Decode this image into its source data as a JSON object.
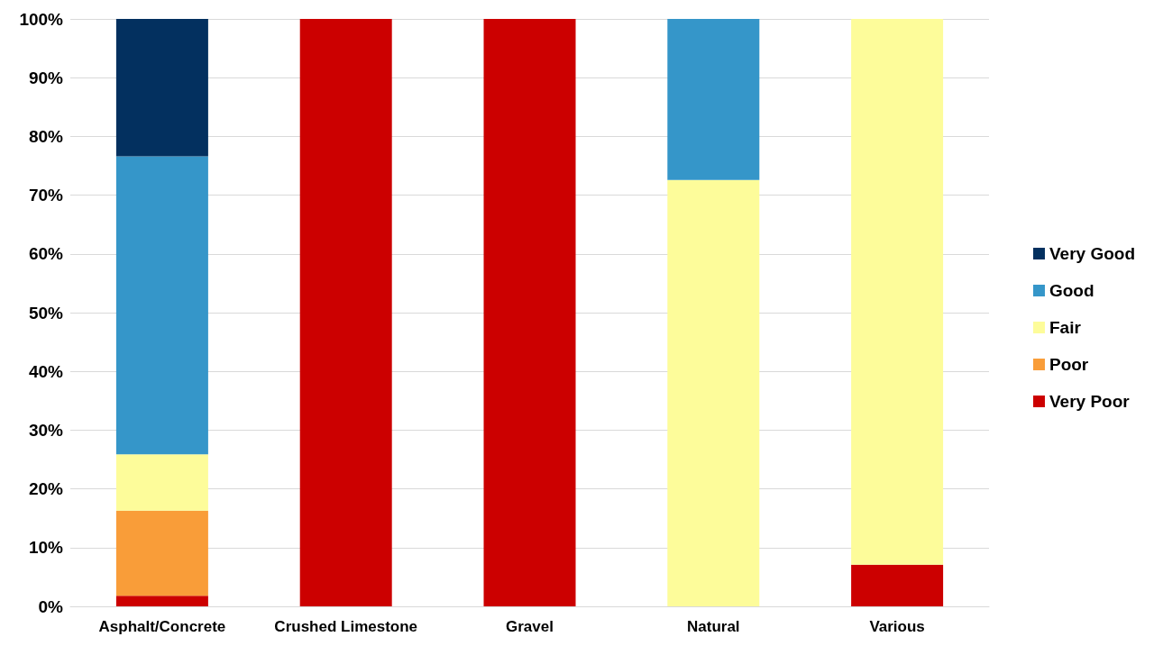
{
  "chart_data": {
    "type": "bar",
    "stacked": true,
    "categories": [
      "Asphalt/Concrete",
      "Crushed Limestone",
      "Gravel",
      "Natural",
      "Various"
    ],
    "series": [
      {
        "name": "Very Poor",
        "color": "#cc0000",
        "values": [
          1.8,
          100,
          100,
          0,
          7.1
        ]
      },
      {
        "name": "Poor",
        "color": "#f99d39",
        "values": [
          14.5,
          0,
          0,
          0,
          0
        ]
      },
      {
        "name": "Fair",
        "color": "#fdfc9a",
        "values": [
          9.6,
          0,
          0,
          72.6,
          92.9
        ]
      },
      {
        "name": "Good",
        "color": "#3596c9",
        "values": [
          50.7,
          0,
          0,
          27.4,
          0
        ]
      },
      {
        "name": "Very Good",
        "color": "#03305f",
        "values": [
          23.4,
          0,
          0,
          0,
          0
        ]
      }
    ],
    "ylim": [
      0,
      100
    ],
    "yticks": [
      {
        "value": 0,
        "label": "0%"
      },
      {
        "value": 10,
        "label": "10%"
      },
      {
        "value": 20,
        "label": "20%"
      },
      {
        "value": 30,
        "label": "30%"
      },
      {
        "value": 40,
        "label": "40%"
      },
      {
        "value": 50,
        "label": "50%"
      },
      {
        "value": 60,
        "label": "60%"
      },
      {
        "value": 70,
        "label": "70%"
      },
      {
        "value": 80,
        "label": "80%"
      },
      {
        "value": 90,
        "label": "90%"
      },
      {
        "value": 100,
        "label": "100%"
      }
    ],
    "grid": "y",
    "legend": "right"
  }
}
